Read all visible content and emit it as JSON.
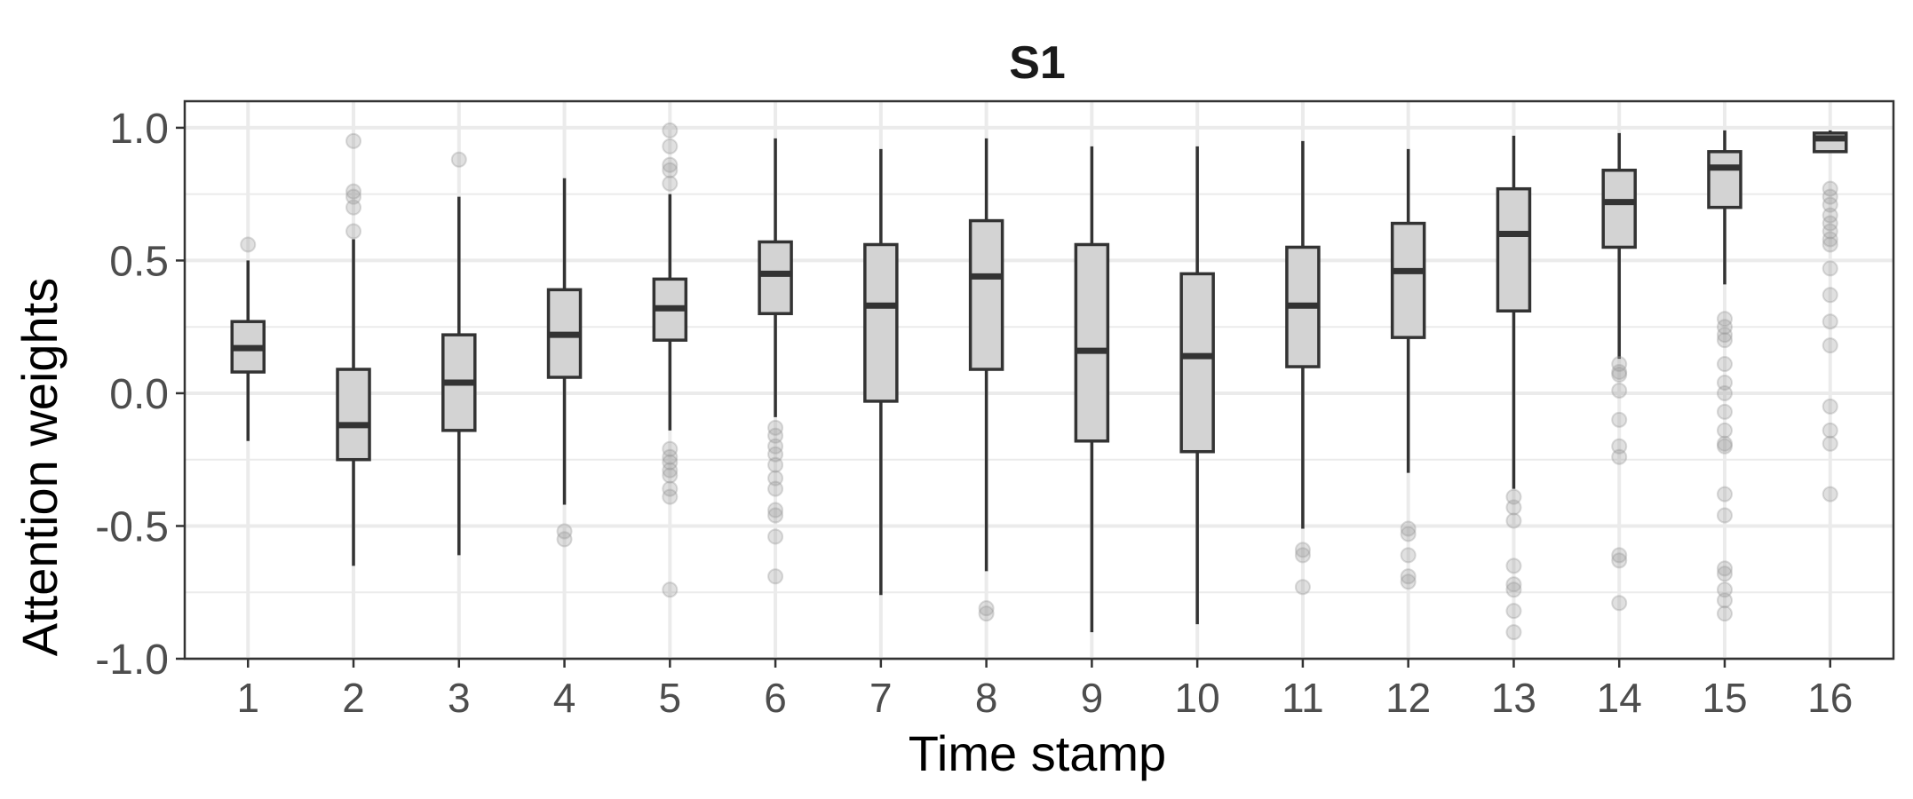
{
  "chart_data": {
    "type": "box",
    "title": "S1",
    "xlabel": "Time stamp",
    "ylabel": "Attention weights",
    "ylim": [
      -1.0,
      1.1
    ],
    "y_ticks": [
      -1.0,
      -0.5,
      0.0,
      0.5,
      1.0
    ],
    "y_tick_labels": [
      "-1.0",
      "-0.5",
      "0.0",
      "0.5",
      "1.0"
    ],
    "grid": true,
    "legend": "none",
    "categories": [
      "1",
      "2",
      "3",
      "4",
      "5",
      "6",
      "7",
      "8",
      "9",
      "10",
      "11",
      "12",
      "13",
      "14",
      "15",
      "16"
    ],
    "colors": {
      "box_fill": "#d3d3d3",
      "box_stroke": "#333333",
      "outlier": "#999999",
      "grid": "#ebebeb",
      "panel_border": "#333333"
    },
    "boxes": [
      {
        "x": "1",
        "whisker_low": -0.18,
        "q1": 0.08,
        "median": 0.17,
        "q3": 0.27,
        "whisker_high": 0.5,
        "outliers": [
          0.56
        ]
      },
      {
        "x": "2",
        "whisker_low": -0.65,
        "q1": -0.25,
        "median": -0.12,
        "q3": 0.09,
        "whisker_high": 0.58,
        "outliers": [
          0.61,
          0.7,
          0.74,
          0.76,
          0.95
        ]
      },
      {
        "x": "3",
        "whisker_low": -0.61,
        "q1": -0.14,
        "median": 0.04,
        "q3": 0.22,
        "whisker_high": 0.74,
        "outliers": [
          0.88
        ]
      },
      {
        "x": "4",
        "whisker_low": -0.42,
        "q1": 0.06,
        "median": 0.22,
        "q3": 0.39,
        "whisker_high": 0.81,
        "outliers": [
          -0.52,
          -0.55
        ]
      },
      {
        "x": "5",
        "whisker_low": -0.14,
        "q1": 0.2,
        "median": 0.32,
        "q3": 0.43,
        "whisker_high": 0.75,
        "outliers": [
          0.79,
          0.84,
          0.86,
          0.93,
          0.99,
          -0.21,
          -0.24,
          -0.26,
          -0.29,
          -0.31,
          -0.36,
          -0.39,
          -0.74
        ]
      },
      {
        "x": "6",
        "whisker_low": -0.09,
        "q1": 0.3,
        "median": 0.45,
        "q3": 0.57,
        "whisker_high": 0.96,
        "outliers": [
          -0.13,
          -0.16,
          -0.2,
          -0.23,
          -0.27,
          -0.32,
          -0.36,
          -0.44,
          -0.46,
          -0.54,
          -0.69
        ]
      },
      {
        "x": "7",
        "whisker_low": -0.76,
        "q1": -0.03,
        "median": 0.33,
        "q3": 0.56,
        "whisker_high": 0.92,
        "outliers": []
      },
      {
        "x": "8",
        "whisker_low": -0.67,
        "q1": 0.09,
        "median": 0.44,
        "q3": 0.65,
        "whisker_high": 0.96,
        "outliers": [
          -0.81,
          -0.83
        ]
      },
      {
        "x": "9",
        "whisker_low": -0.9,
        "q1": -0.18,
        "median": 0.16,
        "q3": 0.56,
        "whisker_high": 0.93,
        "outliers": []
      },
      {
        "x": "10",
        "whisker_low": -0.87,
        "q1": -0.22,
        "median": 0.14,
        "q3": 0.45,
        "whisker_high": 0.93,
        "outliers": []
      },
      {
        "x": "11",
        "whisker_low": -0.51,
        "q1": 0.1,
        "median": 0.33,
        "q3": 0.55,
        "whisker_high": 0.95,
        "outliers": [
          -0.59,
          -0.61,
          -0.73
        ]
      },
      {
        "x": "12",
        "whisker_low": -0.3,
        "q1": 0.21,
        "median": 0.46,
        "q3": 0.64,
        "whisker_high": 0.92,
        "outliers": [
          -0.51,
          -0.53,
          -0.61,
          -0.69,
          -0.71
        ]
      },
      {
        "x": "13",
        "whisker_low": -0.36,
        "q1": 0.31,
        "median": 0.6,
        "q3": 0.77,
        "whisker_high": 0.97,
        "outliers": [
          -0.39,
          -0.43,
          -0.48,
          -0.65,
          -0.72,
          -0.74,
          -0.82,
          -0.9
        ]
      },
      {
        "x": "14",
        "whisker_low": 0.13,
        "q1": 0.55,
        "median": 0.72,
        "q3": 0.84,
        "whisker_high": 0.98,
        "outliers": [
          0.11,
          0.08,
          0.07,
          0.01,
          -0.1,
          -0.2,
          -0.24,
          -0.61,
          -0.63,
          -0.79
        ]
      },
      {
        "x": "15",
        "whisker_low": 0.41,
        "q1": 0.7,
        "median": 0.85,
        "q3": 0.91,
        "whisker_high": 0.99,
        "outliers": [
          0.28,
          0.25,
          0.22,
          0.2,
          0.11,
          0.04,
          0.0,
          -0.07,
          -0.14,
          -0.19,
          -0.2,
          -0.38,
          -0.46,
          -0.66,
          -0.68,
          -0.74,
          -0.78,
          -0.83
        ]
      },
      {
        "x": "16",
        "whisker_low": 0.91,
        "q1": 0.91,
        "median": 0.96,
        "q3": 0.98,
        "whisker_high": 0.99,
        "outliers": [
          0.77,
          0.74,
          0.71,
          0.67,
          0.64,
          0.61,
          0.58,
          0.56,
          0.47,
          0.37,
          0.27,
          0.18,
          -0.05,
          -0.14,
          -0.19,
          -0.38
        ]
      }
    ]
  }
}
